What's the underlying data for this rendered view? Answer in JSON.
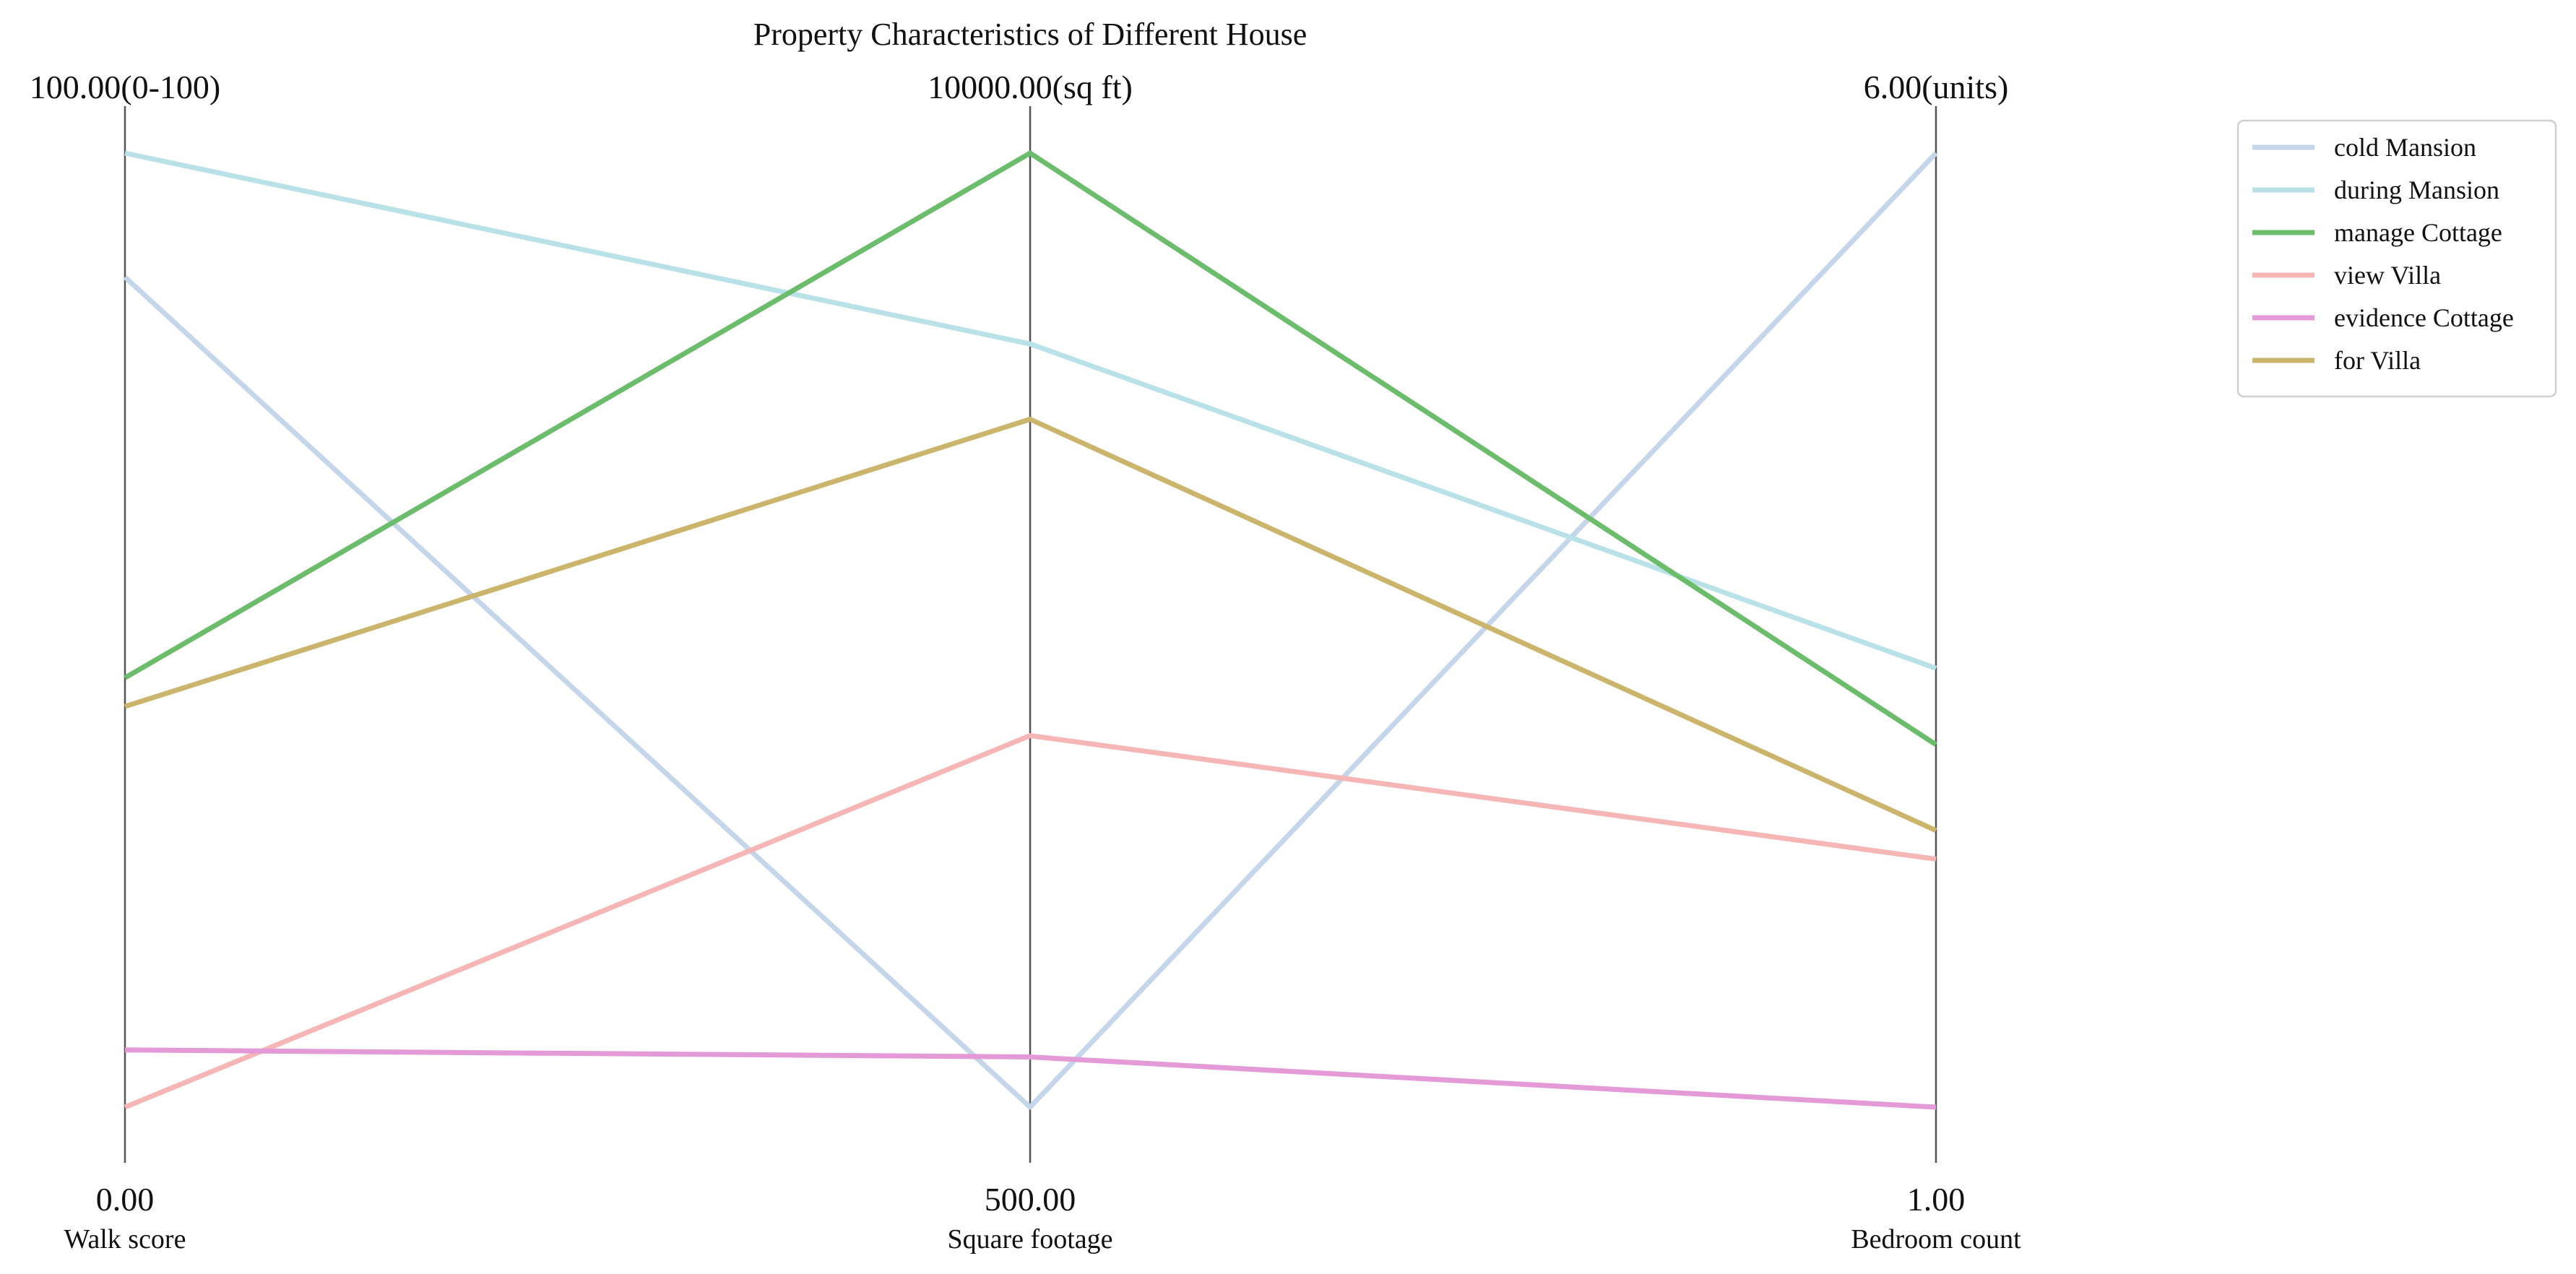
{
  "chart_data": {
    "type": "parallel-coordinates",
    "title": "Property Characteristics of Different House",
    "axes": [
      {
        "label": "Walk score",
        "unit": "(0-100)",
        "min": 0,
        "max": 100,
        "min_label": "0.00",
        "max_label": "100.00(0-100)"
      },
      {
        "label": "Square footage",
        "unit": "(sq ft)",
        "min": 500,
        "max": 10000,
        "min_label": "500.00",
        "max_label": "10000.00(sq ft)"
      },
      {
        "label": "Bedroom count",
        "unit": "(units)",
        "min": 1,
        "max": 6,
        "min_label": "1.00",
        "max_label": "6.00(units)"
      }
    ],
    "series": [
      {
        "name": "cold Mansion",
        "color": "#c5d5ea",
        "values": [
          87,
          500,
          6
        ]
      },
      {
        "name": "during Mansion",
        "color": "#b8e2e8",
        "values": [
          100,
          8100,
          3.3
        ]
      },
      {
        "name": "manage Cottage",
        "color": "#6bbd6b",
        "values": [
          45,
          10000,
          2.9
        ]
      },
      {
        "name": "view Villa",
        "color": "#f7b6b6",
        "values": [
          0,
          4200,
          2.3
        ]
      },
      {
        "name": "evidence Cottage",
        "color": "#e39ad6",
        "values": [
          6,
          1000,
          1
        ]
      },
      {
        "name": "for Villa",
        "color": "#cbb56c",
        "values": [
          42,
          7350,
          2.45
        ]
      }
    ],
    "legend_position": "top-right",
    "grid": false
  }
}
